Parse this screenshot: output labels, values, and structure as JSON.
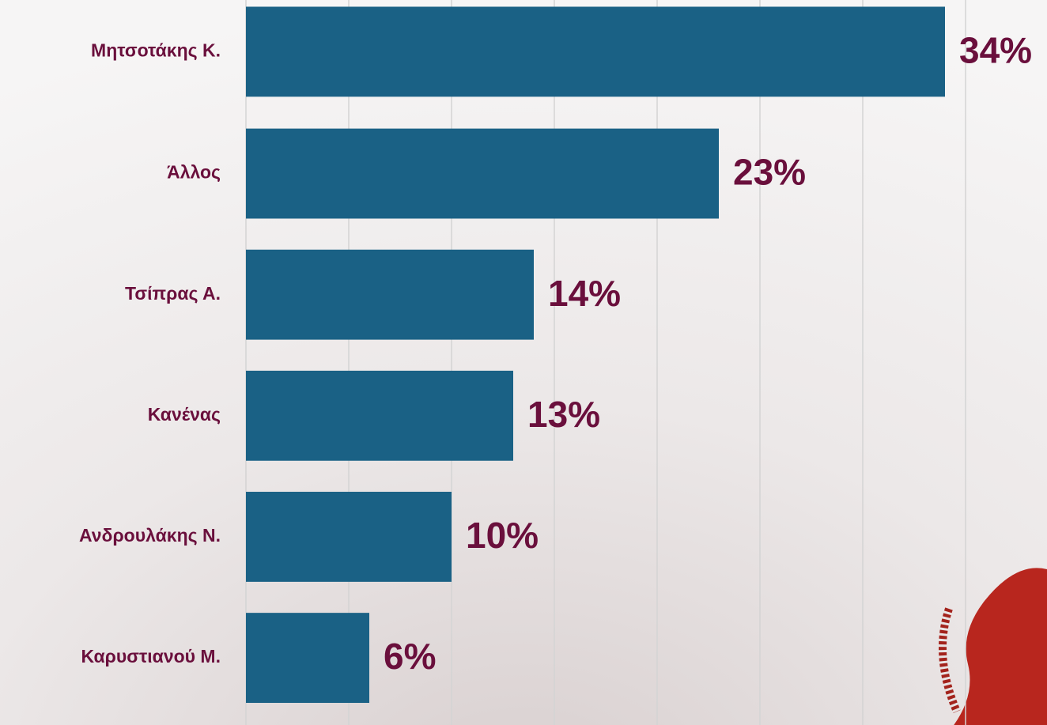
{
  "chart_data": {
    "type": "hbar",
    "categories": [
      "Μητσοτάκης Κ.",
      "Άλλος",
      "Τσίπρας Α.",
      "Κανένας",
      "Ανδρουλάκης Ν.",
      "Καρυστιανού Μ."
    ],
    "values": [
      34,
      23,
      14,
      13,
      10,
      6
    ],
    "value_labels": [
      "34%",
      "23%",
      "14%",
      "13%",
      "10%",
      "6%"
    ],
    "color": "#1a6185",
    "label_color": "#6a0f3c",
    "xlim": [
      0,
      35
    ],
    "xticks": [
      0,
      5,
      10,
      15,
      20,
      25,
      30,
      35
    ],
    "grid": true
  }
}
